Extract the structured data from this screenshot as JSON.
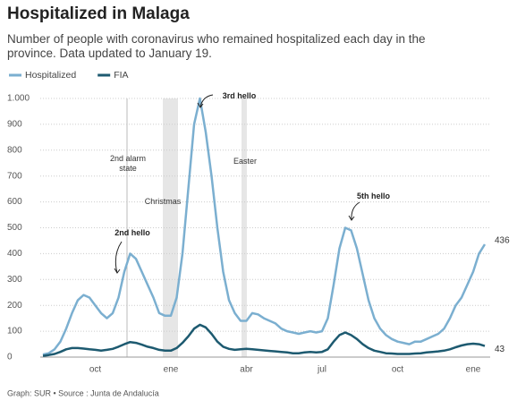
{
  "chart_data": {
    "type": "line",
    "title": "Hospitalized in Malaga",
    "subtitle": "Number of people with coronavirus who remained hospitalized each day in the province. Data updated to January 19.",
    "source": "Graph: SUR • Source : Junta de Andalucía",
    "categories": [
      null,
      null,
      null,
      null,
      null,
      null,
      null,
      null,
      null,
      "oct",
      null,
      null,
      null,
      null,
      null,
      null,
      null,
      null,
      null,
      null,
      null,
      null,
      "ene",
      null,
      null,
      null,
      null,
      null,
      null,
      null,
      null,
      null,
      null,
      null,
      null,
      "abr",
      null,
      null,
      null,
      null,
      null,
      null,
      null,
      null,
      null,
      null,
      null,
      null,
      "jul",
      null,
      null,
      null,
      null,
      null,
      null,
      null,
      null,
      null,
      null,
      null,
      null,
      "oct",
      null,
      null,
      null,
      null,
      null,
      null,
      null,
      null,
      null,
      null,
      null,
      null,
      "ene",
      null,
      null
    ],
    "series": [
      {
        "name": "Hospitalized",
        "color": "#7bafd0",
        "values": [
          10,
          15,
          30,
          60,
          110,
          170,
          220,
          240,
          230,
          200,
          170,
          150,
          170,
          230,
          330,
          400,
          380,
          330,
          280,
          230,
          170,
          160,
          160,
          230,
          400,
          650,
          900,
          1000,
          870,
          700,
          500,
          330,
          220,
          170,
          140,
          140,
          170,
          165,
          150,
          140,
          130,
          110,
          100,
          95,
          90,
          95,
          100,
          95,
          100,
          150,
          280,
          420,
          500,
          490,
          420,
          320,
          220,
          150,
          110,
          85,
          70,
          60,
          55,
          50,
          60,
          60,
          70,
          80,
          90,
          110,
          150,
          200,
          230,
          280,
          330,
          400,
          436
        ]
      },
      {
        "name": "FIA",
        "color": "#1d5a70",
        "values": [
          5,
          8,
          12,
          20,
          30,
          35,
          35,
          33,
          30,
          28,
          25,
          28,
          32,
          40,
          50,
          58,
          55,
          48,
          40,
          35,
          28,
          25,
          25,
          35,
          55,
          80,
          110,
          125,
          115,
          90,
          60,
          40,
          32,
          28,
          30,
          32,
          30,
          28,
          26,
          24,
          22,
          20,
          18,
          15,
          15,
          18,
          20,
          18,
          20,
          30,
          60,
          85,
          95,
          85,
          70,
          50,
          35,
          25,
          20,
          15,
          14,
          12,
          12,
          12,
          14,
          15,
          18,
          20,
          22,
          25,
          30,
          38,
          45,
          50,
          52,
          50,
          43
        ]
      }
    ],
    "ylim": [
      0,
      1000
    ],
    "yticks": [
      0,
      100,
      200,
      300,
      400,
      500,
      600,
      700,
      800,
      900,
      {
        "value": 1000,
        "label": "1.000"
      }
    ],
    "grid": true,
    "annotations": [
      "2nd alarm state",
      "Christmas",
      "Easter",
      "2nd hello",
      "3rd hello",
      "5th hello"
    ]
  }
}
